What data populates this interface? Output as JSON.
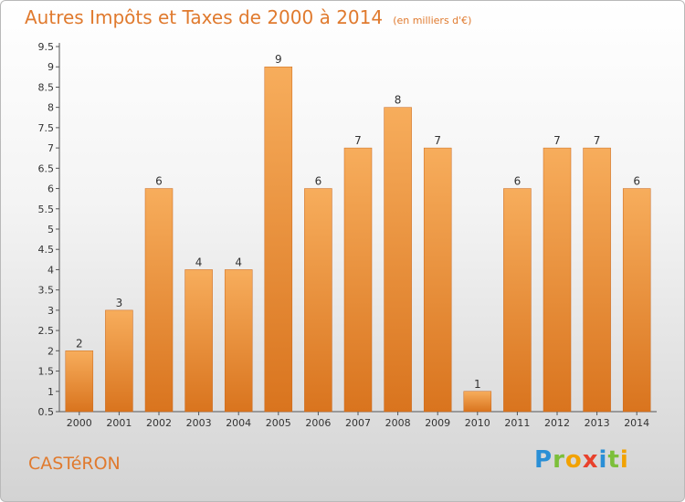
{
  "header": {
    "title": "Autres Impôts et Taxes de 2000 à 2014",
    "unit": "(en milliers d'€)"
  },
  "commune": "CASTéRON",
  "logo": {
    "letters": [
      "P",
      "r",
      "o",
      "x",
      "i",
      "t",
      "i"
    ],
    "colors": [
      "#2a8fd6",
      "#7cbf3a",
      "#f2a200",
      "#e8412c",
      "#2a8fd6",
      "#7cbf3a",
      "#f2a200"
    ]
  },
  "colors": {
    "bar_light": "#f7ad5c",
    "bar_dark": "#d9741e",
    "title": "#e07a2e"
  },
  "chart_data": {
    "type": "bar",
    "title": "Autres Impôts et Taxes de 2000 à 2014",
    "categories": [
      "2000",
      "2001",
      "2002",
      "2003",
      "2004",
      "2005",
      "2006",
      "2007",
      "2008",
      "2009",
      "2010",
      "2011",
      "2012",
      "2013",
      "2014"
    ],
    "values": [
      2,
      3,
      6,
      4,
      4,
      9,
      6,
      7,
      8,
      7,
      1,
      6,
      7,
      7,
      6
    ],
    "ylim": [
      0.5,
      9.5
    ],
    "yticks": [
      "0.5",
      "1",
      "1.5",
      "2",
      "2.5",
      "3",
      "3.5",
      "4",
      "4.5",
      "5",
      "5.5",
      "6",
      "6.5",
      "7",
      "7.5",
      "8",
      "8.5",
      "9",
      "9.5"
    ],
    "grid": false,
    "data_labels": true
  }
}
